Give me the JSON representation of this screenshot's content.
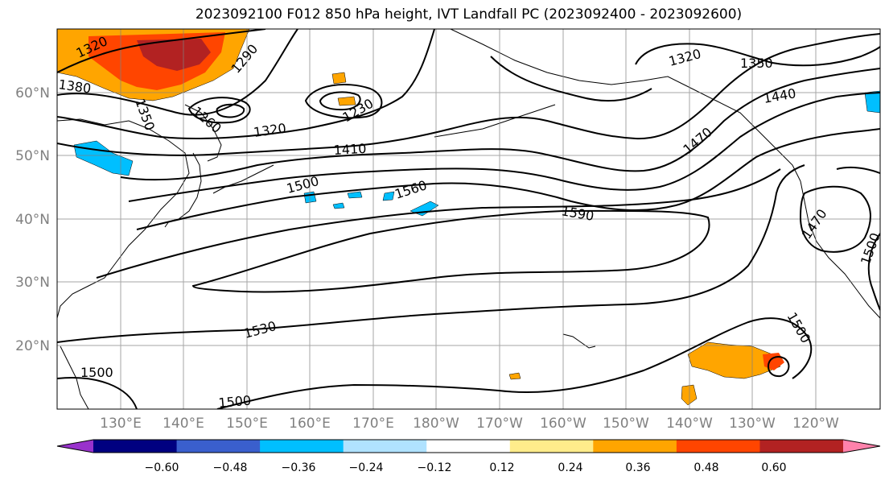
{
  "title": "2023092100 F012 850 hPa height, IVT Landfall PC (2023092400 - 2023092600)",
  "lat_labels": [
    "60°N",
    "50°N",
    "40°N",
    "30°N",
    "20°N"
  ],
  "lon_labels": [
    "130°E",
    "140°E",
    "150°E",
    "160°E",
    "170°E",
    "180°W",
    "170°W",
    "160°W",
    "150°W",
    "140°W",
    "130°W",
    "120°W"
  ],
  "contour_labels": [
    "1320",
    "1380",
    "1350",
    "1260",
    "1290",
    "1230",
    "1320",
    "1410",
    "1500",
    "1560",
    "1590",
    "1320",
    "1350",
    "1440",
    "1470",
    "1530",
    "1500",
    "1500",
    "1500",
    "1470",
    "1500"
  ],
  "colorbar": {
    "tick_labels": [
      "−0.60",
      "−0.48",
      "−0.36",
      "−0.24",
      "−0.12",
      "0.12",
      "0.24",
      "0.36",
      "0.48",
      "0.60"
    ],
    "colors": [
      "#9932cc",
      "#000080",
      "#3a5fcd",
      "#00bfff",
      "#b0e2ff",
      "#ffffff",
      "#ffec8b",
      "#ffa500",
      "#ff4500",
      "#b22222",
      "#ff82ab"
    ]
  }
}
